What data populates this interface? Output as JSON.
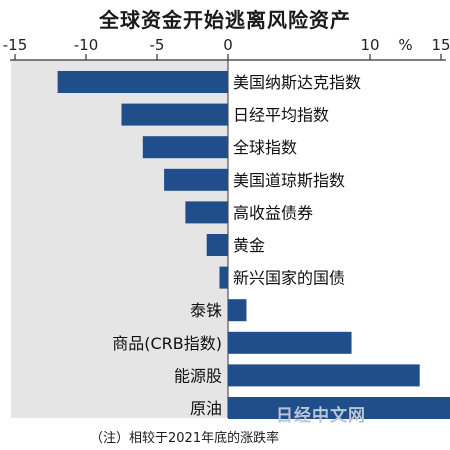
{
  "title": "全球资金开始逃离风险资产",
  "unit": "%",
  "note": "（注）相较于2021年底的涨跌率",
  "watermark": "日经中文网",
  "colors": {
    "bar": "#1f4e8a",
    "neg_zone": "#e5e5e5",
    "axis": "#333333"
  },
  "chart_data": {
    "type": "bar",
    "orientation": "horizontal",
    "title": "全球资金开始逃离风险资产",
    "xlabel": "",
    "ylabel": "",
    "xlim": [
      -15,
      15
    ],
    "xticks": [
      -15,
      -10,
      -5,
      0,
      10,
      15
    ],
    "xtick_labels": [
      "-15",
      "-10",
      "-5",
      "0",
      "10",
      "15"
    ],
    "unit": "%",
    "categories": [
      "美国纳斯达克指数",
      "日经平均指数",
      "全球指数",
      "美国道琼斯指数",
      "高收益债券",
      "黄金",
      "新兴国家的国债",
      "泰铢",
      "商品(CRB指数)",
      "能源股",
      "原油"
    ],
    "values": [
      -12,
      -7.5,
      -6,
      -4.5,
      -3,
      -1.5,
      -0.6,
      1.3,
      8.7,
      13.5,
      15.8
    ]
  }
}
